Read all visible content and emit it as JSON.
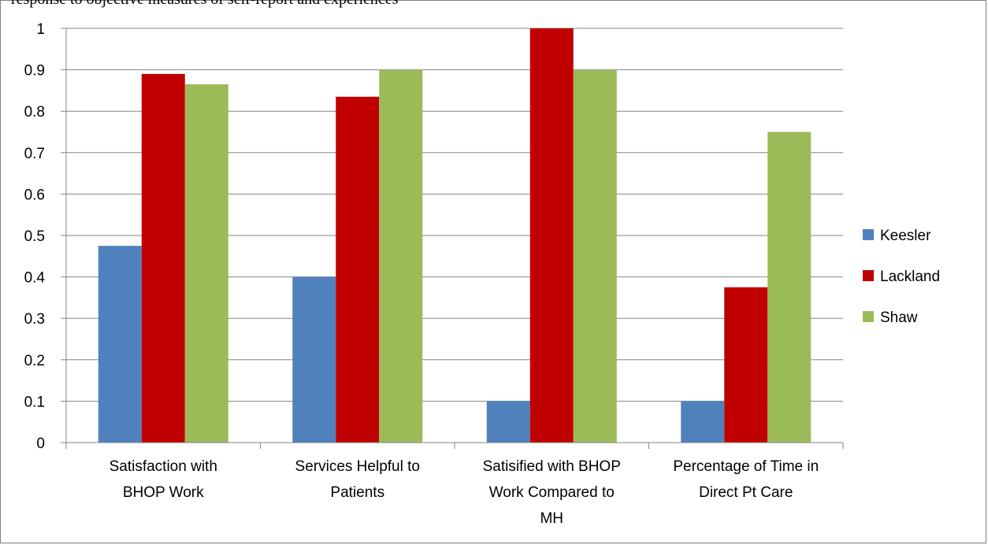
{
  "header_fragment": "response to objective measures of self-report and experiences",
  "chart_data": {
    "type": "bar",
    "categories": [
      [
        "Satisfaction with",
        "BHOP Work"
      ],
      [
        "Services Helpful to",
        "Patients"
      ],
      [
        "Satisified with BHOP",
        "Work Compared to",
        "MH"
      ],
      [
        "Percentage of Time in",
        "Direct Pt Care"
      ]
    ],
    "series": [
      {
        "name": "Keesler",
        "color": "#4f81bd",
        "values": [
          0.475,
          0.4,
          0.1,
          0.1
        ]
      },
      {
        "name": "Lackland",
        "color": "#c00000",
        "values": [
          0.89,
          0.835,
          1.0,
          0.375
        ]
      },
      {
        "name": "Shaw",
        "color": "#9bbb59",
        "values": [
          0.865,
          0.9,
          0.9,
          0.75
        ]
      }
    ],
    "ylim": [
      0,
      1
    ],
    "yticks": [
      "0",
      "0.1",
      "0.2",
      "0.3",
      "0.4",
      "0.5",
      "0.6",
      "0.7",
      "0.8",
      "0.9",
      "1"
    ],
    "grid": true,
    "legend": "right",
    "title": "",
    "xlabel": "",
    "ylabel": ""
  }
}
